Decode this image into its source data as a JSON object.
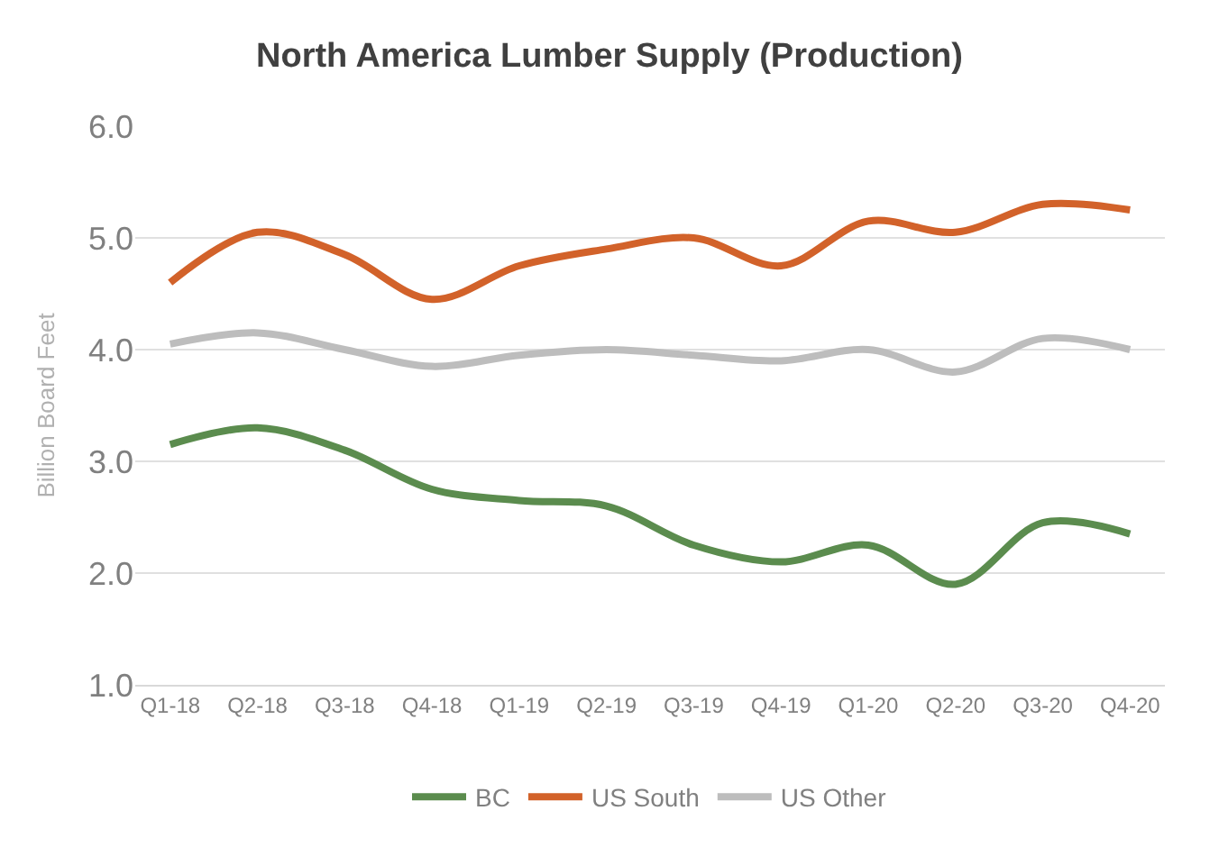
{
  "chart_data": {
    "type": "line",
    "title": "North America Lumber Supply (Production)",
    "ylabel": "Billion Board Feet",
    "categories": [
      "Q1-18",
      "Q2-18",
      "Q3-18",
      "Q4-18",
      "Q1-19",
      "Q2-19",
      "Q3-19",
      "Q4-19",
      "Q1-20",
      "Q2-20",
      "Q3-20",
      "Q4-20"
    ],
    "series": [
      {
        "name": "BC",
        "color": "#5b8c4e",
        "values": [
          3.15,
          3.3,
          3.1,
          2.75,
          2.65,
          2.6,
          2.25,
          2.1,
          2.25,
          1.9,
          2.45,
          2.35
        ]
      },
      {
        "name": "US South",
        "color": "#d2622a",
        "values": [
          4.6,
          5.05,
          4.85,
          4.45,
          4.75,
          4.9,
          5.0,
          4.75,
          5.15,
          5.05,
          5.3,
          5.25
        ]
      },
      {
        "name": "US Other",
        "color": "#bdbdbd",
        "values": [
          4.05,
          4.15,
          4.0,
          3.85,
          3.95,
          4.0,
          3.95,
          3.9,
          4.0,
          3.8,
          4.1,
          4.0
        ]
      }
    ],
    "ylim": [
      1.0,
      6.0
    ],
    "yticks": [
      {
        "value": 1,
        "label": "1.0"
      },
      {
        "value": 2,
        "label": "2.0"
      },
      {
        "value": 3,
        "label": "3.0"
      },
      {
        "value": 4,
        "label": "4.0"
      },
      {
        "value": 5,
        "label": "5.0"
      },
      {
        "value": 6,
        "label": "6.0"
      }
    ],
    "grid": "y",
    "legend": "bottom",
    "marker": "none",
    "line_style": "solid"
  }
}
